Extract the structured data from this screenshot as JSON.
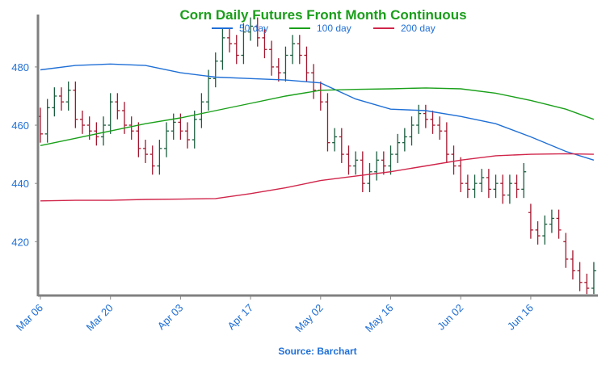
{
  "chart_data": {
    "type": "ohlc",
    "title": "Corn Daily Futures Front Month Continuous",
    "source": "Source: Barchart",
    "categories": [
      "Mar 06",
      null,
      null,
      null,
      null,
      null,
      null,
      null,
      null,
      null,
      "Mar 20",
      null,
      null,
      null,
      null,
      null,
      null,
      null,
      null,
      null,
      "Apr 03",
      null,
      null,
      null,
      null,
      null,
      null,
      null,
      null,
      null,
      "Apr 17",
      null,
      null,
      null,
      null,
      null,
      null,
      null,
      null,
      null,
      "May 02",
      null,
      null,
      null,
      null,
      null,
      null,
      null,
      null,
      null,
      "May 16",
      null,
      null,
      null,
      null,
      null,
      null,
      null,
      null,
      null,
      "Jun 02",
      null,
      null,
      null,
      null,
      null,
      null,
      null,
      null,
      null,
      "Jun 16",
      null,
      null,
      null,
      null,
      null,
      null,
      null,
      null,
      null
    ],
    "open": [
      463,
      457,
      466,
      470,
      468,
      472,
      462,
      460,
      458,
      456,
      460,
      468,
      465,
      460,
      458,
      452,
      450,
      446,
      452,
      458,
      461,
      458,
      455,
      462,
      468,
      476,
      482,
      490,
      488,
      484,
      492,
      494,
      490,
      486,
      480,
      478,
      484,
      488,
      484,
      478,
      472,
      468,
      454,
      456,
      450,
      446,
      448,
      440,
      444,
      448,
      446,
      450,
      454,
      456,
      460,
      464,
      462,
      460,
      458,
      450,
      446,
      440,
      438,
      440,
      442,
      438,
      440,
      436,
      440,
      438,
      430,
      424,
      422,
      426,
      428,
      420,
      414,
      410,
      406,
      404
    ],
    "high": [
      466,
      469,
      473,
      473,
      475,
      475,
      465,
      463,
      461,
      463,
      471,
      471,
      468,
      463,
      461,
      455,
      453,
      455,
      461,
      464,
      464,
      461,
      465,
      471,
      479,
      485,
      493,
      493,
      491,
      495,
      497,
      497,
      493,
      489,
      483,
      487,
      491,
      491,
      487,
      481,
      475,
      471,
      459,
      459,
      453,
      451,
      451,
      447,
      451,
      451,
      453,
      457,
      459,
      463,
      467,
      467,
      465,
      463,
      461,
      453,
      449,
      443,
      443,
      445,
      445,
      443,
      443,
      443,
      443,
      447,
      433,
      427,
      429,
      431,
      431,
      423,
      417,
      413,
      409,
      413
    ],
    "low": [
      454,
      454,
      463,
      465,
      465,
      459,
      457,
      455,
      453,
      453,
      457,
      462,
      457,
      455,
      449,
      447,
      443,
      443,
      449,
      455,
      455,
      452,
      452,
      459,
      465,
      473,
      479,
      485,
      481,
      481,
      489,
      487,
      483,
      477,
      475,
      475,
      481,
      481,
      475,
      469,
      465,
      451,
      451,
      447,
      443,
      443,
      437,
      437,
      441,
      443,
      443,
      447,
      451,
      453,
      457,
      459,
      457,
      455,
      447,
      443,
      437,
      435,
      435,
      437,
      435,
      435,
      433,
      433,
      435,
      435,
      421,
      419,
      419,
      423,
      421,
      411,
      407,
      403,
      402,
      402
    ],
    "close": [
      457,
      466,
      470,
      468,
      472,
      462,
      460,
      458,
      456,
      460,
      468,
      465,
      460,
      458,
      452,
      450,
      446,
      452,
      458,
      461,
      458,
      455,
      462,
      468,
      476,
      482,
      490,
      488,
      484,
      492,
      494,
      490,
      486,
      480,
      478,
      484,
      488,
      484,
      478,
      472,
      468,
      454,
      456,
      450,
      446,
      448,
      440,
      444,
      448,
      446,
      450,
      454,
      456,
      460,
      464,
      462,
      460,
      458,
      450,
      446,
      440,
      438,
      440,
      442,
      438,
      440,
      436,
      440,
      438,
      444,
      424,
      422,
      426,
      428,
      424,
      414,
      410,
      406,
      404,
      410
    ],
    "up_color": "#1b5e3f",
    "down_color": "#a3172f",
    "series": [
      {
        "name": "50 day",
        "color": "#1f6fd6",
        "x": [
          0,
          5,
          10,
          15,
          20,
          25,
          30,
          35,
          40,
          45,
          50,
          55,
          60,
          65,
          70,
          75,
          79
        ],
        "values": [
          479,
          480.5,
          481,
          480.5,
          478,
          476.5,
          476,
          475.5,
          474.5,
          469,
          465.5,
          465,
          463,
          460.5,
          456,
          451,
          448
        ]
      },
      {
        "name": "100 day",
        "color": "#1aa01a",
        "x": [
          0,
          5,
          10,
          15,
          20,
          25,
          30,
          35,
          40,
          45,
          50,
          55,
          60,
          65,
          70,
          75,
          79
        ],
        "values": [
          453,
          455.5,
          458,
          460.5,
          462.5,
          465,
          467.5,
          470,
          472,
          472.3,
          472.5,
          472.8,
          472.5,
          471,
          468.5,
          465.5,
          462
        ]
      },
      {
        "name": "200 day",
        "color": "#d0254a",
        "x": [
          0,
          5,
          10,
          15,
          20,
          25,
          30,
          35,
          40,
          45,
          50,
          55,
          60,
          65,
          70,
          75,
          79
        ],
        "values": [
          434,
          434.2,
          434.2,
          434.5,
          434.6,
          434.8,
          436.5,
          438.5,
          441,
          442.5,
          444,
          446,
          448,
          449.5,
          450,
          450.2,
          450
        ]
      }
    ],
    "ylim": [
      401.5,
      498
    ],
    "yticks": [
      420,
      440,
      460,
      480
    ],
    "title_color": "#1a9e1a",
    "label_color": "#1f6fd6"
  }
}
